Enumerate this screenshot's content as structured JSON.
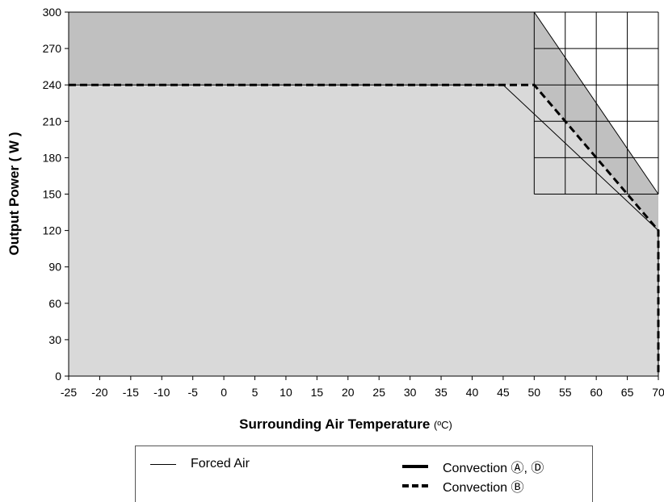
{
  "chart_data": {
    "type": "line",
    "xlabel": "Surrounding Air Temperature",
    "xunit": "(ºC)",
    "ylabel": "Output Power ( W )",
    "xlim": [
      -25,
      70
    ],
    "ylim": [
      0,
      300
    ],
    "xticks": [
      "-25",
      "-20",
      "-15",
      "-10",
      "-5",
      "0",
      "5",
      "10",
      "15",
      "20",
      "25",
      "30",
      "35",
      "40",
      "45",
      "50",
      "55",
      "60",
      "65",
      "70"
    ],
    "yticks": [
      "0",
      "30",
      "60",
      "90",
      "120",
      "150",
      "180",
      "210",
      "240",
      "270",
      "300"
    ],
    "series": [
      {
        "name": "Forced Air",
        "style": "thin",
        "x": [
          -25,
          50,
          70
        ],
        "y": [
          300,
          300,
          150
        ]
      },
      {
        "name": "Convection Ⓐ, Ⓓ",
        "style": "thick",
        "x": [
          -25,
          45,
          70,
          70
        ],
        "y": [
          240,
          240,
          120,
          0
        ]
      },
      {
        "name": "Convection Ⓑ",
        "style": "dashed",
        "x": [
          -25,
          50,
          70,
          70
        ],
        "y": [
          240,
          240,
          120,
          0
        ]
      }
    ],
    "regions": [
      {
        "name": "forced-air-area",
        "color": "#c0c0c0"
      },
      {
        "name": "convection-area",
        "color": "#d9d9d9"
      },
      {
        "name": "derated-grid-area",
        "color": "#ffffff"
      }
    ],
    "grid": "upper-right corner only"
  },
  "legend": {
    "forced_air": "Forced Air",
    "convection_ad": "Convection Ⓐ, Ⓓ",
    "convection_b": "Convection Ⓑ"
  }
}
